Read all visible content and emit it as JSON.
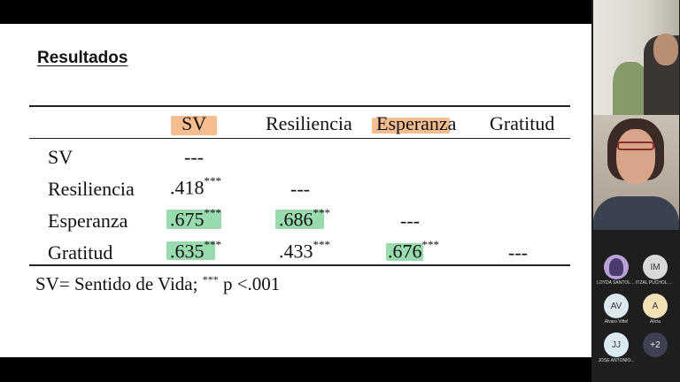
{
  "slide": {
    "title": "Resultados",
    "headers": [
      "SV",
      "Resiliencia",
      "Esperanza",
      "Gratitud"
    ],
    "rows": [
      {
        "label": "SV",
        "cells": [
          "---"
        ]
      },
      {
        "label": "Resiliencia",
        "cells": [
          ".418",
          "---"
        ]
      },
      {
        "label": "Esperanza",
        "cells": [
          ".675",
          ".686",
          "---"
        ]
      },
      {
        "label": "Gratitud",
        "cells": [
          ".635",
          ".433",
          ".676",
          "---"
        ]
      }
    ],
    "sig_mark": "***",
    "note_text": "SV= Sentido de Vida; ",
    "note_sup": "***",
    "note_tail": " p <.001"
  },
  "highlight_colors": {
    "green": "#7fd19b",
    "orange": "#f4b27c"
  },
  "participants": [
    {
      "initials": "",
      "name": "LOYDA SANTOLA..."
    },
    {
      "initials": "IM",
      "name": "ITZAL PUCHOL M..."
    },
    {
      "initials": "AV",
      "name": "Alvaro Vittel"
    },
    {
      "initials": "A",
      "name": "Alicia"
    },
    {
      "initials": "JJ",
      "name": "JOSE ANTONIO..."
    },
    {
      "initials": "+2",
      "name": ""
    }
  ]
}
